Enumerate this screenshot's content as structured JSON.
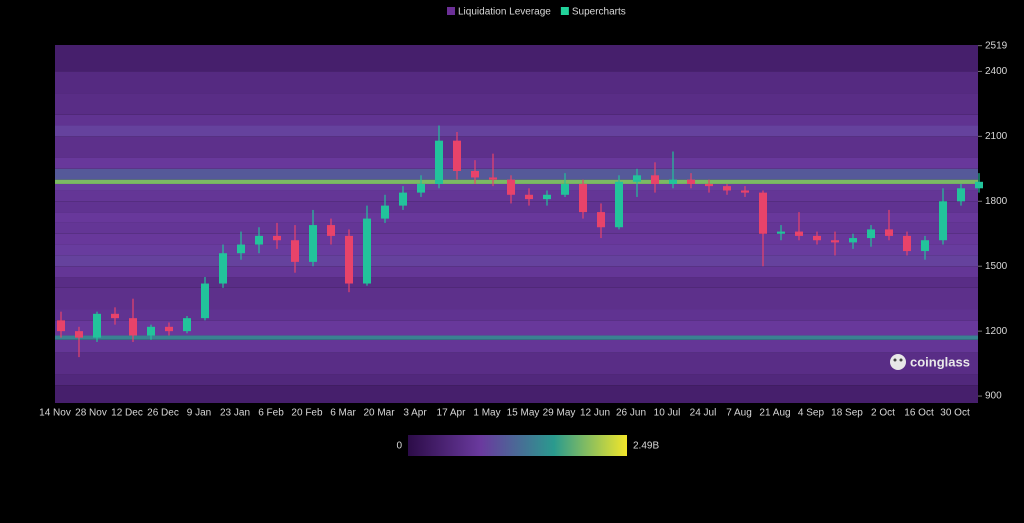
{
  "chart_data": {
    "type": "candlestick",
    "legend": [
      {
        "name": "Liquidation Leverage",
        "color": "#6b2f96"
      },
      {
        "name": "Supercharts",
        "color": "#22d39b"
      }
    ],
    "categories": [
      "14 Nov",
      null,
      "28 Nov",
      null,
      "12 Dec",
      null,
      "26 Dec",
      null,
      "9 Jan",
      null,
      "23 Jan",
      null,
      "6 Feb",
      null,
      "20 Feb",
      null,
      "6 Mar",
      null,
      "20 Mar",
      null,
      "3 Apr",
      null,
      "17 Apr",
      null,
      "1 May",
      null,
      "15 May",
      null,
      "29 May",
      null,
      "12 Jun",
      null,
      "26 Jun",
      null,
      "10 Jul",
      null,
      "24 Jul",
      null,
      "7 Aug",
      null,
      "21 Aug",
      null,
      "4 Sep",
      null,
      "18 Sep",
      null,
      "2 Oct",
      null,
      "16 Oct",
      null,
      "30 Oct",
      null
    ],
    "open": [
      1250,
      1200,
      1170,
      1280,
      1260,
      1180,
      1220,
      1200,
      1260,
      1420,
      1560,
      1600,
      1640,
      1620,
      1520,
      1690,
      1640,
      1420,
      1720,
      1780,
      1840,
      1880,
      2080,
      1940,
      1910,
      1900,
      1830,
      1810,
      1830,
      1880,
      1750,
      1680,
      1890,
      1920,
      1880,
      1900,
      1880,
      1870,
      1850,
      1840,
      1650,
      1660,
      1640,
      1620,
      1610,
      1630,
      1670,
      1640,
      1570,
      1620,
      1800,
      1860
    ],
    "high": [
      1290,
      1220,
      1290,
      1310,
      1350,
      1230,
      1240,
      1270,
      1450,
      1600,
      1660,
      1680,
      1700,
      1690,
      1760,
      1720,
      1670,
      1780,
      1830,
      1870,
      1920,
      2150,
      2120,
      1990,
      2020,
      1920,
      1860,
      1850,
      1930,
      1900,
      1790,
      1920,
      1950,
      1980,
      2030,
      1930,
      1900,
      1880,
      1870,
      1850,
      1690,
      1750,
      1660,
      1660,
      1650,
      1690,
      1760,
      1660,
      1640,
      1860,
      1880,
      1930
    ],
    "low": [
      1170,
      1080,
      1150,
      1230,
      1150,
      1160,
      1180,
      1190,
      1250,
      1400,
      1530,
      1560,
      1580,
      1470,
      1500,
      1600,
      1380,
      1410,
      1700,
      1760,
      1820,
      1860,
      1900,
      1880,
      1870,
      1790,
      1780,
      1780,
      1820,
      1720,
      1630,
      1670,
      1820,
      1840,
      1860,
      1860,
      1840,
      1830,
      1820,
      1500,
      1620,
      1620,
      1600,
      1550,
      1580,
      1590,
      1620,
      1550,
      1530,
      1600,
      1780,
      1840
    ],
    "close": [
      1200,
      1170,
      1280,
      1260,
      1180,
      1220,
      1200,
      1260,
      1420,
      1560,
      1600,
      1640,
      1620,
      1520,
      1690,
      1640,
      1420,
      1720,
      1780,
      1840,
      1880,
      2080,
      1940,
      1910,
      1900,
      1830,
      1810,
      1830,
      1880,
      1750,
      1680,
      1890,
      1920,
      1880,
      1900,
      1880,
      1870,
      1850,
      1840,
      1650,
      1660,
      1640,
      1620,
      1610,
      1630,
      1670,
      1640,
      1570,
      1620,
      1800,
      1860,
      1890
    ],
    "up_color": "#22c39b",
    "down_color": "#e8436a",
    "ylim": [
      868,
      2522
    ],
    "yticks": [
      900,
      1200,
      1500,
      1800,
      2100,
      2400,
      2519
    ],
    "heatmap": {
      "bins": [
        868,
        950,
        1000,
        1100,
        1160,
        1180,
        1250,
        1300,
        1400,
        1450,
        1500,
        1550,
        1600,
        1650,
        1700,
        1750,
        1800,
        1850,
        1880,
        1900,
        1950,
        2000,
        2100,
        2150,
        2200,
        2300,
        2400,
        2522
      ],
      "values": [
        350000000,
        500000000,
        600000000,
        750000000,
        1450000000,
        800000000,
        700000000,
        650000000,
        600000000,
        750000000,
        900000000,
        850000000,
        800000000,
        750000000,
        800000000,
        700000000,
        750000000,
        850000000,
        2000000000,
        1100000000,
        800000000,
        650000000,
        900000000,
        700000000,
        600000000,
        550000000,
        350000000
      ],
      "colorscale": [
        "#2c0c48",
        "#6a3a9e",
        "#2a9a8e",
        "#f2e62a"
      ],
      "clim": [
        0,
        2490000000
      ],
      "cticks": [
        0,
        {
          "value": 2490000000,
          "label": "2.49B"
        }
      ]
    },
    "watermark": "coinglass"
  }
}
